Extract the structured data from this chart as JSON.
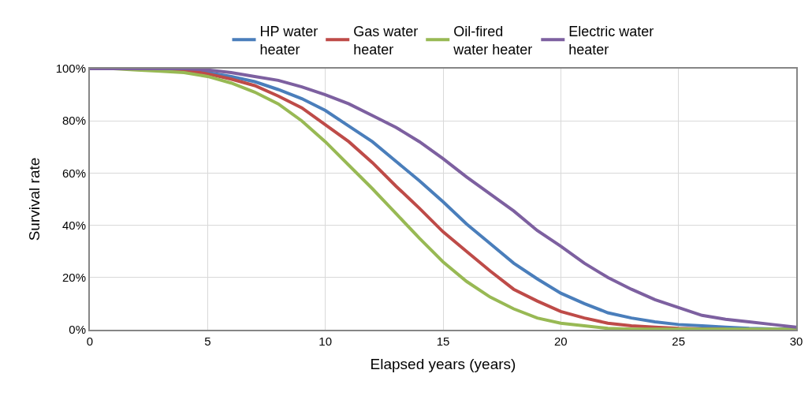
{
  "chart_data": {
    "type": "line",
    "xlabel": "Elapsed years (years)",
    "ylabel": "Survival rate",
    "x": [
      0,
      1,
      2,
      3,
      4,
      5,
      6,
      7,
      8,
      9,
      10,
      11,
      12,
      13,
      14,
      15,
      16,
      17,
      18,
      19,
      20,
      21,
      22,
      23,
      24,
      25,
      26,
      27,
      28,
      29,
      30
    ],
    "series": [
      {
        "name": "HP water\nheater",
        "color": "#4a7ebb",
        "values": [
          null,
          null,
          null,
          null,
          99.5,
          98.5,
          97,
          95,
          92,
          88.5,
          84,
          78,
          72,
          64.5,
          57,
          49,
          40.5,
          33,
          25.5,
          19.5,
          14,
          10,
          6.5,
          4.5,
          3,
          2,
          1.5,
          1,
          0.5,
          0.3,
          0.2
        ]
      },
      {
        "name": "Gas water\nheater",
        "color": "#be4b48",
        "values": [
          null,
          null,
          null,
          100,
          99.5,
          98,
          96,
          93.5,
          89.5,
          85,
          78.5,
          72,
          64,
          55,
          46.5,
          37.5,
          30,
          22.5,
          15.5,
          11,
          7,
          4.5,
          2.5,
          1.5,
          1,
          0.5,
          0.3,
          0.2,
          null,
          null,
          null
        ]
      },
      {
        "name": "Oil-fired\nwater heater",
        "color": "#98b954",
        "values": [
          100,
          100,
          99.5,
          99,
          98.5,
          97,
          94.5,
          91,
          86.5,
          80,
          72,
          63,
          54,
          44.5,
          35,
          26,
          18.5,
          12.5,
          8,
          4.5,
          2.5,
          1.5,
          0.5,
          0.2,
          0.2,
          0.2,
          0.2,
          0.2,
          0.2,
          0.2,
          0.2
        ]
      },
      {
        "name": "Electric water\nheater",
        "color": "#7d60a0",
        "values": [
          100,
          100,
          100,
          100,
          100,
          99.5,
          98.5,
          97,
          95.5,
          93,
          90,
          86.5,
          82,
          77.5,
          72,
          65.5,
          58.5,
          52,
          45.5,
          38,
          32,
          25.5,
          20,
          15.5,
          11.5,
          8.5,
          5.5,
          4,
          3,
          2,
          1
        ]
      }
    ],
    "xlim": [
      0,
      30
    ],
    "xticks": [
      0,
      5,
      10,
      15,
      20,
      25,
      30
    ],
    "ylim": [
      0,
      100
    ],
    "yticks": [
      {
        "value": 0,
        "label": "0%"
      },
      {
        "value": 20,
        "label": "20%"
      },
      {
        "value": 40,
        "label": "40%"
      },
      {
        "value": 60,
        "label": "60%"
      },
      {
        "value": 80,
        "label": "80%"
      },
      {
        "value": 100,
        "label": "100%"
      }
    ],
    "grid": true,
    "legend": "top",
    "marker": "none",
    "line_style": "solid"
  }
}
